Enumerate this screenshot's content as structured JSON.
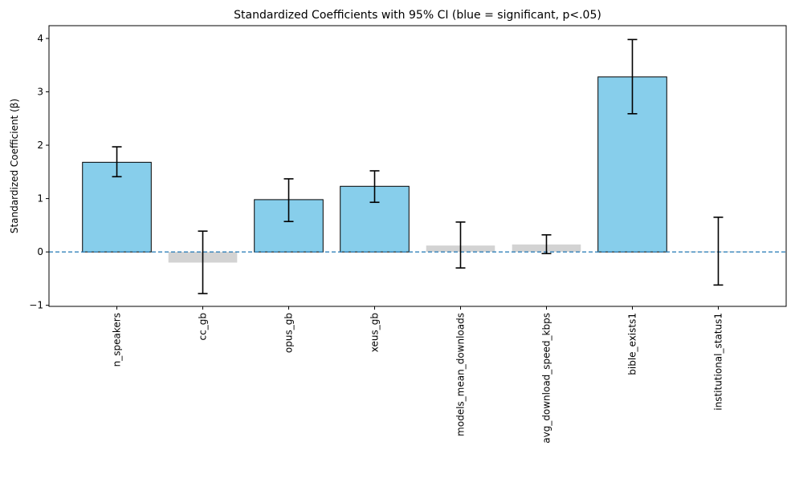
{
  "chart_data": {
    "type": "bar",
    "title": "Standardized Coefficients with 95% CI (blue = significant, p<.05)",
    "xlabel": "",
    "ylabel": "Standardized Coefficient (β)",
    "ylim": [
      -1.02,
      4.24
    ],
    "yticks": [
      -1,
      0,
      1,
      2,
      3,
      4
    ],
    "ytick_labels": [
      "−1",
      "0",
      "1",
      "2",
      "3",
      "4"
    ],
    "grid": false,
    "reference_line": {
      "y": 0,
      "style": "dashed",
      "color": "#1f77b4"
    },
    "colors": {
      "significant": "#87ceeb",
      "not_significant": "#d3d3d3"
    },
    "categories": [
      "n_speakers",
      "cc_gb",
      "opus_gb",
      "xeus_gb",
      "models_mean_downloads",
      "avg_download_speed_kbps",
      "bible_exists1",
      "institutional_status1"
    ],
    "values": [
      1.68,
      -0.2,
      0.98,
      1.23,
      0.12,
      0.14,
      3.28,
      0.01
    ],
    "ci_low": [
      1.41,
      -0.78,
      0.57,
      0.93,
      -0.3,
      -0.03,
      2.59,
      -0.62
    ],
    "ci_high": [
      1.97,
      0.39,
      1.37,
      1.52,
      0.56,
      0.32,
      3.98,
      0.65
    ],
    "significant": [
      true,
      false,
      true,
      true,
      false,
      false,
      true,
      false
    ]
  }
}
